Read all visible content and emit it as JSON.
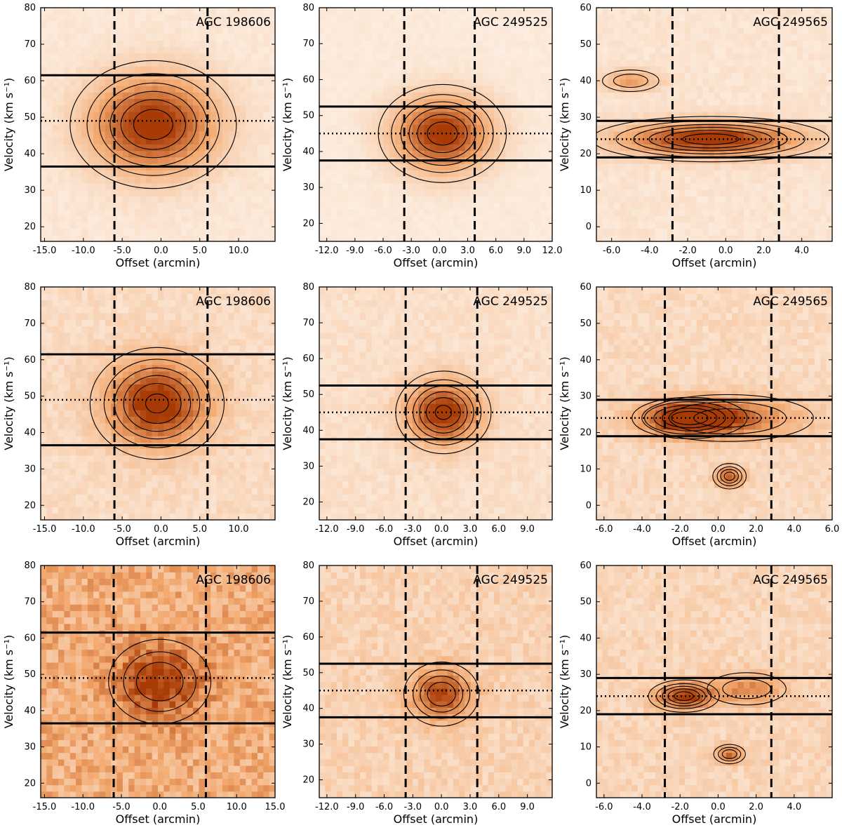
{
  "figure": {
    "description_free": true
  },
  "chart_data": [
    {
      "type": "heatmap",
      "row": 1,
      "title": "AGC 198606",
      "xlabel": "Offset (arcmin)",
      "ylabel": "Velocity (km s⁻¹)",
      "xlim": [
        -15.5,
        14.7
      ],
      "ylim": [
        16,
        80
      ],
      "xticks": [
        -15,
        -10,
        -5,
        0,
        5,
        10
      ],
      "xticklabels": [
        "-15.0",
        "-10.0",
        "-5.0",
        "0.0",
        "5.0",
        "10.0"
      ],
      "yticks": [
        20,
        30,
        40,
        50,
        60,
        70,
        80
      ],
      "yticklabels": [
        "20",
        "30",
        "40",
        "50",
        "60",
        "70",
        "80"
      ],
      "solid_lines_y": [
        61.5,
        36.5
      ],
      "dotted_line_y": 49,
      "dashed_lines_x": [
        -6,
        6
      ],
      "blobs": [
        {
          "x": -1.0,
          "y": 48,
          "sx": 5.5,
          "sy": 9,
          "peak": 1.0
        }
      ],
      "background": 0.08
    },
    {
      "type": "heatmap",
      "row": 1,
      "title": "AGC 249525",
      "xlabel": "Offset (arcmin)",
      "ylabel": "Velocity (km s⁻¹)",
      "xlim": [
        -12.8,
        12.0
      ],
      "ylim": [
        15,
        80
      ],
      "xticks": [
        -12,
        -9,
        -6,
        -3,
        0,
        3,
        6,
        9,
        12
      ],
      "xticklabels": [
        "-12.0",
        "-9.0",
        "-6.0",
        "-3.0",
        "0.0",
        "3.0",
        "6.0",
        "9.0",
        "12.0"
      ],
      "yticks": [
        20,
        30,
        40,
        50,
        60,
        70,
        80
      ],
      "yticklabels": [
        "20",
        "30",
        "40",
        "50",
        "60",
        "70",
        "80"
      ],
      "solid_lines_y": [
        52.5,
        37.5
      ],
      "dotted_line_y": 45,
      "dashed_lines_x": [
        -3.75,
        3.75
      ],
      "blobs": [
        {
          "x": 0.3,
          "y": 45,
          "sx": 3.5,
          "sy": 7,
          "peak": 1.0
        }
      ],
      "background": 0.06
    },
    {
      "type": "heatmap",
      "row": 1,
      "title": "AGC 249565",
      "xlabel": "Offset (arcmin)",
      "ylabel": "Velocity (km s⁻¹)",
      "xlim": [
        -6.8,
        5.6
      ],
      "ylim": [
        -4,
        60
      ],
      "xticks": [
        -6,
        -4,
        -2,
        0,
        2,
        4
      ],
      "xticklabels": [
        "-6.0",
        "-4.0",
        "-2.0",
        "0.0",
        "2.0",
        "4.0"
      ],
      "yticks": [
        0,
        10,
        20,
        30,
        40,
        50,
        60
      ],
      "yticklabels": [
        "0",
        "10",
        "20",
        "30",
        "40",
        "50",
        "60"
      ],
      "solid_lines_y": [
        29,
        19
      ],
      "dotted_line_y": 24,
      "dashed_lines_x": [
        -2.8,
        2.8
      ],
      "blobs": [
        {
          "x": -0.8,
          "y": 24,
          "sx": 3.2,
          "sy": 3.2,
          "peak": 1.0
        },
        {
          "x": -5.0,
          "y": 40,
          "sx": 1.0,
          "sy": 2,
          "peak": 0.45
        }
      ],
      "background": 0.1
    },
    {
      "type": "heatmap",
      "row": 2,
      "title": "AGC 198606",
      "xlabel": "Offset (arcmin)",
      "ylabel": "Velocity (km s⁻¹)",
      "xlim": [
        -15.5,
        14.7
      ],
      "ylim": [
        16,
        80
      ],
      "xticks": [
        -15,
        -10,
        -5,
        0,
        5,
        10
      ],
      "xticklabels": [
        "-15.0",
        "-10.0",
        "-5.0",
        "0.0",
        "5.0",
        "10.0"
      ],
      "yticks": [
        20,
        30,
        40,
        50,
        60,
        70,
        80
      ],
      "yticklabels": [
        "20",
        "30",
        "40",
        "50",
        "60",
        "70",
        "80"
      ],
      "solid_lines_y": [
        61.5,
        36.5
      ],
      "dotted_line_y": 49,
      "dashed_lines_x": [
        -6,
        6
      ],
      "blobs": [
        {
          "x": -0.5,
          "y": 48,
          "sx": 4.5,
          "sy": 8,
          "peak": 0.95
        }
      ],
      "background": 0.16
    },
    {
      "type": "heatmap",
      "row": 2,
      "title": "AGC 249525",
      "xlabel": "Offset (arcmin)",
      "ylabel": "Velocity (km s⁻¹)",
      "xlim": [
        -12.8,
        11.6
      ],
      "ylim": [
        15,
        80
      ],
      "xticks": [
        -12,
        -9,
        -6,
        -3,
        0,
        3,
        6,
        9
      ],
      "xticklabels": [
        "-12.0",
        "-9.0",
        "-6.0",
        "-3.0",
        "0.0",
        "3.0",
        "6.0",
        "9.0"
      ],
      "yticks": [
        20,
        30,
        40,
        50,
        60,
        70,
        80
      ],
      "yticklabels": [
        "20",
        "30",
        "40",
        "50",
        "60",
        "70",
        "80"
      ],
      "solid_lines_y": [
        52.5,
        37.5
      ],
      "dotted_line_y": 45,
      "dashed_lines_x": [
        -3.75,
        3.75
      ],
      "blobs": [
        {
          "x": 0.2,
          "y": 45,
          "sx": 2.6,
          "sy": 6,
          "peak": 0.95
        }
      ],
      "background": 0.13
    },
    {
      "type": "heatmap",
      "row": 2,
      "title": "AGC 249565",
      "xlabel": "Offset (arcmin)",
      "ylabel": "Velocity (km s⁻¹)",
      "xlim": [
        -6.4,
        6.0
      ],
      "ylim": [
        -4,
        60
      ],
      "xticks": [
        -6,
        -4,
        -2,
        0,
        2,
        4,
        6
      ],
      "xticklabels": [
        "-6.0",
        "-4.0",
        "-2.0",
        "0.0",
        "2.0",
        "4.0",
        "6.0"
      ],
      "yticks": [
        0,
        10,
        20,
        30,
        40,
        50,
        60
      ],
      "yticklabels": [
        "0",
        "10",
        "20",
        "30",
        "40",
        "50",
        "60"
      ],
      "solid_lines_y": [
        29,
        19
      ],
      "dotted_line_y": 24,
      "dashed_lines_x": [
        -2.8,
        2.8
      ],
      "blobs": [
        {
          "x": -1.5,
          "y": 24,
          "sx": 1.6,
          "sy": 3,
          "peak": 0.9
        },
        {
          "x": 0.5,
          "y": 24,
          "sx": 2.8,
          "sy": 4,
          "peak": 0.55
        },
        {
          "x": 0.6,
          "y": 8,
          "sx": 0.5,
          "sy": 2,
          "peak": 0.7
        }
      ],
      "background": 0.17
    },
    {
      "type": "heatmap",
      "row": 3,
      "title": "AGC 198606",
      "xlabel": "Offset (arcmin)",
      "ylabel": "Velocity (km s⁻¹)",
      "xlim": [
        -15.5,
        15.0
      ],
      "ylim": [
        16,
        80
      ],
      "xticks": [
        -15,
        -10,
        -5,
        0,
        5,
        10,
        15
      ],
      "xticklabels": [
        "-15.0",
        "-10.0",
        "-5.0",
        "0.0",
        "5.0",
        "10.0",
        "15.0"
      ],
      "yticks": [
        20,
        30,
        40,
        50,
        60,
        70,
        80
      ],
      "yticklabels": [
        "20",
        "30",
        "40",
        "50",
        "60",
        "70",
        "80"
      ],
      "solid_lines_y": [
        61.5,
        36.5
      ],
      "dotted_line_y": 49,
      "dashed_lines_x": [
        -6,
        6
      ],
      "blobs": [
        {
          "x": 0,
          "y": 48,
          "sx": 4,
          "sy": 7,
          "peak": 0.6
        }
      ],
      "background": 0.45
    },
    {
      "type": "heatmap",
      "row": 3,
      "title": "AGC 249525",
      "xlabel": "Offset (arcmin)",
      "ylabel": "Velocity (km s⁻¹)",
      "xlim": [
        -12.8,
        11.6
      ],
      "ylim": [
        15,
        80
      ],
      "xticks": [
        -12,
        -9,
        -6,
        -3,
        0,
        3,
        6,
        9
      ],
      "xticklabels": [
        "-12.0",
        "-9.0",
        "-6.0",
        "-3.0",
        "0.0",
        "3.0",
        "6.0",
        "9.0"
      ],
      "yticks": [
        20,
        30,
        40,
        50,
        60,
        70,
        80
      ],
      "yticklabels": [
        "20",
        "30",
        "40",
        "50",
        "60",
        "70",
        "80"
      ],
      "solid_lines_y": [
        52.5,
        37.5
      ],
      "dotted_line_y": 45,
      "dashed_lines_x": [
        -3.75,
        3.75
      ],
      "blobs": [
        {
          "x": 0,
          "y": 44,
          "sx": 2.2,
          "sy": 5,
          "peak": 0.75
        }
      ],
      "background": 0.22
    },
    {
      "type": "heatmap",
      "row": 3,
      "title": "AGC 249565",
      "xlabel": "Offset (arcmin)",
      "ylabel": "Velocity (km s⁻¹)",
      "xlim": [
        -6.4,
        6.0
      ],
      "ylim": [
        -4,
        60
      ],
      "xticks": [
        -6,
        -4,
        -2,
        0,
        2,
        4
      ],
      "xticklabels": [
        "-6.0",
        "-4.0",
        "-2.0",
        "0.0",
        "2.0",
        "4.0"
      ],
      "yticks": [
        0,
        10,
        20,
        30,
        40,
        50,
        60
      ],
      "yticklabels": [
        "0",
        "10",
        "20",
        "30",
        "40",
        "50",
        "60"
      ],
      "solid_lines_y": [
        29,
        19
      ],
      "dotted_line_y": 24,
      "dashed_lines_x": [
        -2.8,
        2.8
      ],
      "blobs": [
        {
          "x": -1.8,
          "y": 24,
          "sx": 1.0,
          "sy": 2.4,
          "peak": 0.85
        },
        {
          "x": 0.6,
          "y": 8,
          "sx": 0.5,
          "sy": 1.6,
          "peak": 0.6
        },
        {
          "x": 1.5,
          "y": 26,
          "sx": 1.4,
          "sy": 3,
          "peak": 0.45
        }
      ],
      "background": 0.2
    }
  ],
  "colors": {
    "low": "#fdf3ea",
    "mid": "#f2a86e",
    "high": "#a83a05",
    "line": "#000000"
  }
}
